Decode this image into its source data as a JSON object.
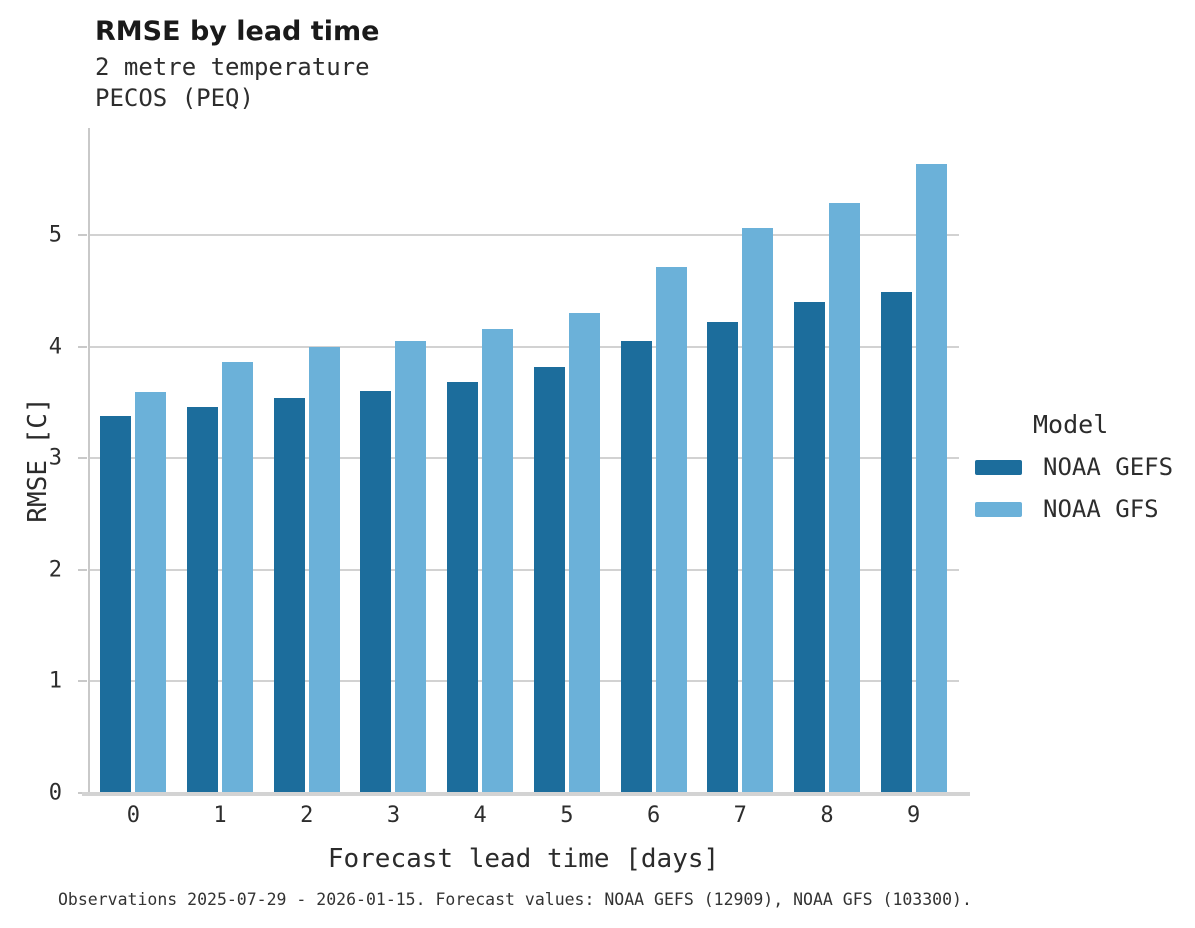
{
  "header": {
    "title": "RMSE by lead time",
    "subtitle_line1": "2 metre temperature",
    "subtitle_line2": "PECOS (PEQ)"
  },
  "legend": {
    "title": "Model"
  },
  "caption": "Observations 2025-07-29 - 2026-01-15. Forecast values: NOAA GEFS (12909), NOAA GFS (103300).",
  "colors": {
    "gefs_bar": "#1c6d9c",
    "gfs_bar": "#6bb1d9",
    "grid": "#d2d2d2",
    "axis": "#c9c9c9"
  },
  "chart_data": {
    "type": "bar",
    "title": "RMSE by lead time",
    "subtitle": "2 metre temperature",
    "station": "PECOS (PEQ)",
    "xlabel": "Forecast lead time [days]",
    "ylabel": "RMSE [C]",
    "categories": [
      "0",
      "1",
      "2",
      "3",
      "4",
      "5",
      "6",
      "7",
      "8",
      "9"
    ],
    "series": [
      {
        "name": "NOAA GEFS",
        "color": "#1c6d9c",
        "values": [
          3.38,
          3.46,
          3.54,
          3.6,
          3.68,
          3.82,
          4.05,
          4.22,
          4.4,
          4.49
        ]
      },
      {
        "name": "NOAA GFS",
        "color": "#6bb1d9",
        "values": [
          3.59,
          3.86,
          4.0,
          4.05,
          4.16,
          4.3,
          4.71,
          5.06,
          5.29,
          5.64
        ]
      }
    ],
    "ylim": [
      0,
      5.96
    ],
    "yticks": [
      0,
      1,
      2,
      3,
      4,
      5
    ],
    "grid": "horizontal",
    "legend_title": "Model",
    "legend_position": "right"
  }
}
